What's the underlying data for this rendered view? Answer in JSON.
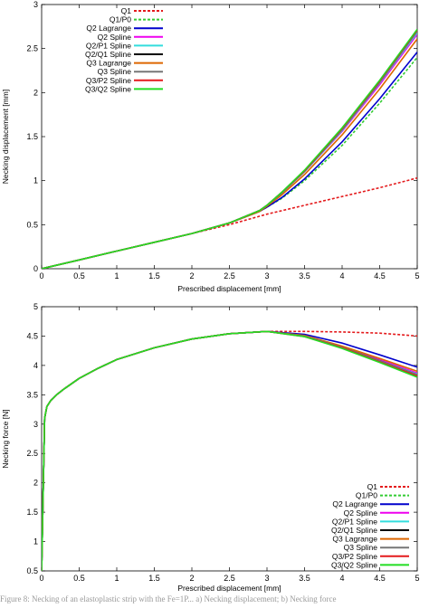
{
  "chart_data": [
    {
      "type": "line",
      "xlabel": "Prescribed displacement [mm]",
      "ylabel": "Necking displacement [mm]",
      "xlim": [
        0,
        5
      ],
      "ylim": [
        0,
        3
      ],
      "xticks": [
        "0",
        "0.5",
        "1",
        "1.5",
        "2",
        "2.5",
        "3",
        "3.5",
        "4",
        "4.5",
        "5"
      ],
      "yticks": [
        "0",
        "0.5",
        "1",
        "1.5",
        "2",
        "2.5",
        "3"
      ],
      "legend_position": "top-left",
      "grid": false,
      "series": [
        {
          "name": "Q1",
          "color": "#e41a1c",
          "dash": "dashed",
          "x": [
            0,
            0.5,
            1,
            1.5,
            2,
            2.5,
            3,
            3.5,
            4,
            4.5,
            5
          ],
          "y": [
            0,
            0.1,
            0.2,
            0.3,
            0.4,
            0.5,
            0.62,
            0.72,
            0.82,
            0.92,
            1.03
          ]
        },
        {
          "name": "Q1/P0",
          "color": "#33cc33",
          "dash": "dashed",
          "x": [
            0,
            0.5,
            1,
            1.5,
            2,
            2.5,
            2.9,
            3,
            3.2,
            3.5,
            4,
            4.5,
            5
          ],
          "y": [
            0,
            0.1,
            0.2,
            0.3,
            0.4,
            0.52,
            0.65,
            0.7,
            0.8,
            1.0,
            1.4,
            1.88,
            2.4
          ]
        },
        {
          "name": "Q2 Lagrange",
          "color": "#0000cc",
          "dash": "solid",
          "x": [
            0,
            0.5,
            1,
            1.5,
            2,
            2.5,
            2.9,
            3,
            3.2,
            3.5,
            4,
            4.5,
            5
          ],
          "y": [
            0,
            0.1,
            0.2,
            0.3,
            0.4,
            0.52,
            0.65,
            0.7,
            0.81,
            1.02,
            1.44,
            1.93,
            2.46
          ]
        },
        {
          "name": "Q2 Spline",
          "color": "#ee00ee",
          "dash": "solid",
          "x": [
            0,
            0.5,
            1,
            1.5,
            2,
            2.5,
            2.9,
            3,
            3.2,
            3.5,
            4,
            4.5,
            5
          ],
          "y": [
            0,
            0.1,
            0.2,
            0.3,
            0.4,
            0.52,
            0.66,
            0.72,
            0.86,
            1.1,
            1.56,
            2.09,
            2.66
          ]
        },
        {
          "name": "Q2/P1 Spline",
          "color": "#33dddd",
          "dash": "solid",
          "x": [
            0,
            0.5,
            1,
            1.5,
            2,
            2.5,
            2.9,
            3,
            3.2,
            3.5,
            4,
            4.5,
            5
          ],
          "y": [
            0,
            0.1,
            0.2,
            0.3,
            0.4,
            0.52,
            0.66,
            0.72,
            0.86,
            1.1,
            1.57,
            2.11,
            2.68
          ]
        },
        {
          "name": "Q2/Q1 Spline",
          "color": "#000000",
          "dash": "solid",
          "x": [
            0,
            0.5,
            1,
            1.5,
            2,
            2.5,
            2.9,
            3,
            3.2,
            3.5,
            4,
            4.5,
            5
          ],
          "y": [
            0,
            0.1,
            0.2,
            0.3,
            0.4,
            0.52,
            0.66,
            0.72,
            0.87,
            1.11,
            1.58,
            2.12,
            2.7
          ]
        },
        {
          "name": "Q3 Lagrange",
          "color": "#dd6600",
          "dash": "solid",
          "x": [
            0,
            0.5,
            1,
            1.5,
            2,
            2.5,
            2.9,
            3,
            3.2,
            3.5,
            4,
            4.5,
            5
          ],
          "y": [
            0,
            0.1,
            0.2,
            0.3,
            0.4,
            0.52,
            0.65,
            0.71,
            0.84,
            1.07,
            1.52,
            2.04,
            2.61
          ]
        },
        {
          "name": "Q3 Spline",
          "color": "#777777",
          "dash": "solid",
          "x": [
            0,
            0.5,
            1,
            1.5,
            2,
            2.5,
            2.9,
            3,
            3.2,
            3.5,
            4,
            4.5,
            5
          ],
          "y": [
            0,
            0.1,
            0.2,
            0.3,
            0.4,
            0.52,
            0.66,
            0.72,
            0.86,
            1.11,
            1.58,
            2.12,
            2.7
          ]
        },
        {
          "name": "Q3/P2 Spline",
          "color": "#e41a1c",
          "dash": "solid",
          "x": [
            0,
            0.5,
            1,
            1.5,
            2,
            2.5,
            2.9,
            3,
            3.2,
            3.5,
            4,
            4.5,
            5
          ],
          "y": [
            0,
            0.1,
            0.2,
            0.3,
            0.4,
            0.52,
            0.66,
            0.72,
            0.87,
            1.11,
            1.59,
            2.13,
            2.71
          ]
        },
        {
          "name": "Q3/Q2 Spline",
          "color": "#22dd22",
          "dash": "solid",
          "x": [
            0,
            0.5,
            1,
            1.5,
            2,
            2.5,
            2.9,
            3,
            3.2,
            3.5,
            4,
            4.5,
            5
          ],
          "y": [
            0,
            0.1,
            0.2,
            0.3,
            0.4,
            0.52,
            0.66,
            0.72,
            0.87,
            1.12,
            1.6,
            2.14,
            2.72
          ]
        }
      ]
    },
    {
      "type": "line",
      "xlabel": "Prescribed displacement [mm]",
      "ylabel": "Necking force [N]",
      "xlim": [
        0,
        5
      ],
      "ylim": [
        0.5,
        5
      ],
      "xticks": [
        "0",
        "0.5",
        "1",
        "1.5",
        "2",
        "2.5",
        "3",
        "3.5",
        "4",
        "4.5",
        "5"
      ],
      "yticks": [
        "0.5",
        "1",
        "1.5",
        "2",
        "2.5",
        "3",
        "3.5",
        "4",
        "4.5",
        "5"
      ],
      "legend_position": "bottom-right",
      "grid": false,
      "series": [
        {
          "name": "Q1",
          "color": "#e41a1c",
          "dash": "dashed",
          "x": [
            0,
            0.04,
            0.07,
            0.12,
            0.2,
            0.3,
            0.5,
            0.75,
            1,
            1.5,
            2,
            2.5,
            3,
            3.5,
            4,
            4.5,
            5
          ],
          "y": [
            0.5,
            3.1,
            3.3,
            3.4,
            3.5,
            3.6,
            3.78,
            3.95,
            4.1,
            4.3,
            4.45,
            4.54,
            4.58,
            4.58,
            4.57,
            4.55,
            4.5
          ]
        },
        {
          "name": "Q1/P0",
          "color": "#33cc33",
          "dash": "dashed",
          "x": [
            0,
            0.04,
            0.07,
            0.12,
            0.2,
            0.3,
            0.5,
            0.75,
            1,
            1.5,
            2,
            2.5,
            3,
            3.5,
            4,
            4.5,
            5
          ],
          "y": [
            0.5,
            3.1,
            3.3,
            3.4,
            3.5,
            3.6,
            3.78,
            3.95,
            4.1,
            4.3,
            4.45,
            4.54,
            4.58,
            4.5,
            4.3,
            4.08,
            3.85
          ]
        },
        {
          "name": "Q2 Lagrange",
          "color": "#0000cc",
          "dash": "solid",
          "x": [
            0,
            0.04,
            0.07,
            0.12,
            0.2,
            0.3,
            0.5,
            0.75,
            1,
            1.5,
            2,
            2.5,
            3,
            3.5,
            4,
            4.5,
            5
          ],
          "y": [
            0.5,
            3.1,
            3.3,
            3.4,
            3.5,
            3.6,
            3.78,
            3.95,
            4.1,
            4.3,
            4.45,
            4.54,
            4.58,
            4.53,
            4.38,
            4.18,
            3.97
          ]
        },
        {
          "name": "Q2 Spline",
          "color": "#ee00ee",
          "dash": "solid",
          "x": [
            0,
            0.04,
            0.07,
            0.12,
            0.2,
            0.3,
            0.5,
            0.75,
            1,
            1.5,
            2,
            2.5,
            3,
            3.5,
            4,
            4.5,
            5
          ],
          "y": [
            0.5,
            3.1,
            3.3,
            3.4,
            3.5,
            3.6,
            3.78,
            3.95,
            4.1,
            4.3,
            4.45,
            4.54,
            4.58,
            4.5,
            4.32,
            4.1,
            3.87
          ]
        },
        {
          "name": "Q2/P1 Spline",
          "color": "#33dddd",
          "dash": "solid",
          "x": [
            0,
            0.04,
            0.07,
            0.12,
            0.2,
            0.3,
            0.5,
            0.75,
            1,
            1.5,
            2,
            2.5,
            3,
            3.5,
            4,
            4.5,
            5
          ],
          "y": [
            0.5,
            3.1,
            3.3,
            3.4,
            3.5,
            3.6,
            3.78,
            3.95,
            4.1,
            4.3,
            4.45,
            4.54,
            4.58,
            4.5,
            4.31,
            4.08,
            3.85
          ]
        },
        {
          "name": "Q2/Q1 Spline",
          "color": "#000000",
          "dash": "solid",
          "x": [
            0,
            0.04,
            0.07,
            0.12,
            0.2,
            0.3,
            0.5,
            0.75,
            1,
            1.5,
            2,
            2.5,
            3,
            3.5,
            4,
            4.5,
            5
          ],
          "y": [
            0.5,
            3.1,
            3.3,
            3.4,
            3.5,
            3.6,
            3.78,
            3.95,
            4.1,
            4.3,
            4.45,
            4.54,
            4.58,
            4.5,
            4.31,
            4.08,
            3.84
          ]
        },
        {
          "name": "Q3 Lagrange",
          "color": "#dd6600",
          "dash": "solid",
          "x": [
            0,
            0.04,
            0.07,
            0.12,
            0.2,
            0.3,
            0.5,
            0.75,
            1,
            1.5,
            2,
            2.5,
            3,
            3.5,
            4,
            4.5,
            5
          ],
          "y": [
            0.5,
            3.1,
            3.3,
            3.4,
            3.5,
            3.6,
            3.78,
            3.95,
            4.1,
            4.3,
            4.45,
            4.54,
            4.58,
            4.51,
            4.33,
            4.12,
            3.9
          ]
        },
        {
          "name": "Q3 Spline",
          "color": "#777777",
          "dash": "solid",
          "x": [
            0,
            0.04,
            0.07,
            0.12,
            0.2,
            0.3,
            0.5,
            0.75,
            1,
            1.5,
            2,
            2.5,
            3,
            3.5,
            4,
            4.5,
            5
          ],
          "y": [
            0.5,
            3.1,
            3.3,
            3.4,
            3.5,
            3.6,
            3.78,
            3.95,
            4.1,
            4.3,
            4.45,
            4.54,
            4.58,
            4.5,
            4.31,
            4.08,
            3.84
          ]
        },
        {
          "name": "Q3/P2 Spline",
          "color": "#e41a1c",
          "dash": "solid",
          "x": [
            0,
            0.04,
            0.07,
            0.12,
            0.2,
            0.3,
            0.5,
            0.75,
            1,
            1.5,
            2,
            2.5,
            3,
            3.5,
            4,
            4.5,
            5
          ],
          "y": [
            0.5,
            3.1,
            3.3,
            3.4,
            3.5,
            3.6,
            3.78,
            3.95,
            4.1,
            4.3,
            4.45,
            4.54,
            4.58,
            4.49,
            4.3,
            4.06,
            3.82
          ]
        },
        {
          "name": "Q3/Q2 Spline",
          "color": "#22dd22",
          "dash": "solid",
          "x": [
            0,
            0.04,
            0.07,
            0.12,
            0.2,
            0.3,
            0.5,
            0.75,
            1,
            1.5,
            2,
            2.5,
            3,
            3.5,
            4,
            4.5,
            5
          ],
          "y": [
            0.5,
            3.1,
            3.3,
            3.4,
            3.5,
            3.6,
            3.78,
            3.95,
            4.1,
            4.3,
            4.45,
            4.54,
            4.58,
            4.49,
            4.29,
            4.05,
            3.8
          ]
        }
      ]
    }
  ],
  "caption": "Figure 8: Necking of an elastoplastic strip with the Fe=1P... a) Necking displacement; b) Necking force"
}
